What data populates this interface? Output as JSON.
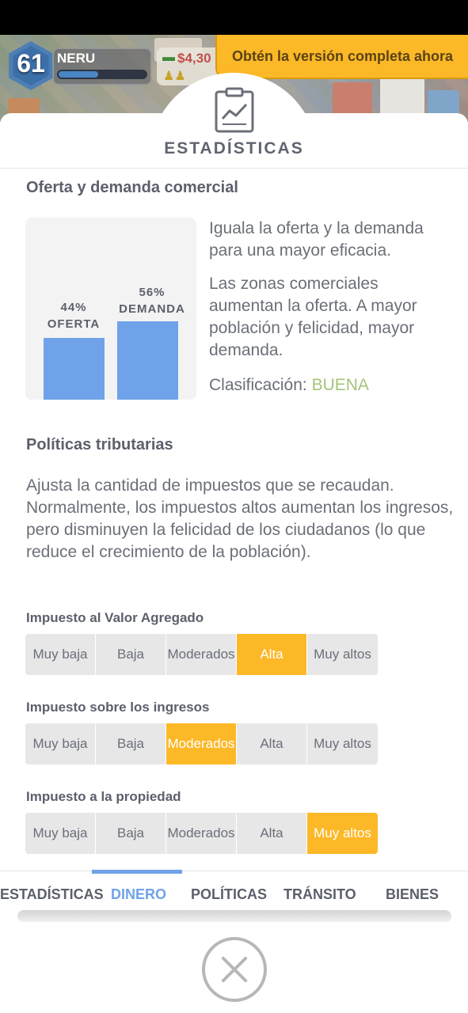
{
  "hud": {
    "level": "61",
    "player_name": "NERU",
    "xp_progress": 0.45,
    "money": "$4,30"
  },
  "promo": {
    "label": "Obtén la versión completa ahora"
  },
  "panel": {
    "title": "ESTADÍSTICAS"
  },
  "commerce": {
    "heading": "Oferta y demanda comercial",
    "supply_percent": "44%",
    "supply_label": "OFERTA",
    "supply_value": 44,
    "demand_percent": "56%",
    "demand_label": "DEMANDA",
    "demand_value": 56,
    "desc1": "Iguala la oferta y la demanda para una mayor eficacia.",
    "desc2": "Las zonas comerciales aumentan la oferta. A mayor población y felicidad, mayor demanda.",
    "rating_label": "Clasificación:",
    "rating_value": "BUENA"
  },
  "taxes": {
    "heading": "Políticas tributarias",
    "desc": "Ajusta la cantidad de impuestos que se recaudan. Normalmente, los impuestos altos aumentan los ingresos, pero disminuyen la felicidad de los ciudadanos (lo que reduce el crecimiento de la población).",
    "options": [
      "Muy baja",
      "Baja",
      "Moderados",
      "Alta",
      "Muy altos"
    ],
    "items": [
      {
        "label": "Impuesto al Valor Agregado",
        "selected": 3
      },
      {
        "label": "Impuesto sobre los ingresos",
        "selected": 2
      },
      {
        "label": "Impuesto a la propiedad",
        "selected": 4
      }
    ]
  },
  "tabs": [
    {
      "label": "ESTADÍSTICAS"
    },
    {
      "label": "DINERO",
      "active": true
    },
    {
      "label": "POLÍTICAS"
    },
    {
      "label": "TRÁNSITO"
    },
    {
      "label": "BIENES"
    }
  ],
  "colors": {
    "accent_orange": "#fcb827",
    "accent_blue": "#6fa2e8",
    "rating_good": "#a3c47a"
  }
}
